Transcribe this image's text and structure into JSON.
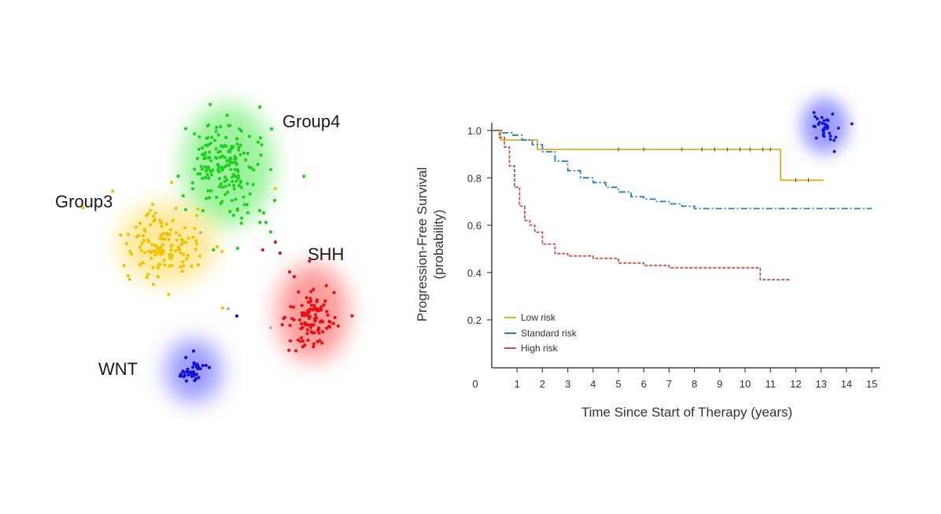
{
  "clusters": {
    "groups": [
      {
        "label": "Group4",
        "color": "#1fd11f",
        "glow": "#4dea4d"
      },
      {
        "label": "Group3",
        "color": "#f2c200",
        "glow": "#ffd84a"
      },
      {
        "label": "SHH",
        "color": "#e81111",
        "glow": "#ff4a4a"
      },
      {
        "label": "WNT",
        "color": "#1212d8",
        "glow": "#4a4aff"
      }
    ]
  },
  "chart_data": {
    "type": "line",
    "subtype": "kaplan-meier survival curve",
    "title": "",
    "xlabel": "Time Since Start of Therapy (years)",
    "ylabel": "Progression-Free Survival (probability)",
    "ylabel_lines": [
      "Progression-Free Survival",
      "(probability)"
    ],
    "xlim": [
      0,
      15
    ],
    "ylim": [
      0,
      1.0
    ],
    "x_ticks": [
      0,
      1,
      2,
      3,
      4,
      5,
      6,
      7,
      8,
      9,
      10,
      11,
      12,
      13,
      14,
      15
    ],
    "y_ticks": [
      0.2,
      0.4,
      0.6,
      0.8,
      1.0
    ],
    "y_tick_labels": [
      "0.2",
      "0.4",
      "0.6",
      "0.8",
      "1.0"
    ],
    "x_tick_labels": [
      "0",
      "1",
      "2",
      "3",
      "4",
      "5",
      "6",
      "7",
      "8",
      "9",
      "10",
      "11",
      "12",
      "13",
      "14",
      "15"
    ],
    "grid": false,
    "legend_position": "bottom-left",
    "series": [
      {
        "name": "Low risk",
        "color": "#e0b020",
        "style": "solid",
        "x": [
          0,
          0.35,
          1.8,
          11.4,
          13.1
        ],
        "values": [
          1.0,
          0.96,
          0.92,
          0.79,
          0.79
        ],
        "censored_x": [
          5.0,
          6.0,
          7.5,
          8.3,
          8.8,
          9.3,
          9.8,
          10.2,
          10.7,
          11.0,
          12.0,
          12.5
        ]
      },
      {
        "name": "Standard risk",
        "color": "#1f7fc8",
        "style": "dash-dot",
        "x": [
          0,
          0.4,
          0.8,
          1.2,
          1.6,
          2.0,
          2.5,
          3.0,
          3.5,
          4.0,
          4.5,
          5.0,
          5.5,
          6.0,
          6.5,
          7.0,
          7.5,
          8.0,
          9.0,
          10.0,
          11.0,
          12.0,
          13.0,
          14.0,
          15.0
        ],
        "values": [
          1.0,
          0.99,
          0.98,
          0.96,
          0.94,
          0.91,
          0.87,
          0.83,
          0.8,
          0.78,
          0.76,
          0.74,
          0.72,
          0.71,
          0.7,
          0.69,
          0.68,
          0.67,
          0.67,
          0.67,
          0.67,
          0.67,
          0.67,
          0.67,
          0.67
        ]
      },
      {
        "name": "High risk",
        "color": "#c0524a",
        "style": "dashed",
        "x": [
          0,
          0.3,
          0.5,
          0.7,
          0.9,
          1.1,
          1.3,
          1.5,
          1.7,
          2.0,
          2.5,
          3.0,
          4.0,
          5.0,
          6.0,
          7.0,
          8.0,
          9.0,
          10.0,
          10.6,
          11.8
        ],
        "values": [
          1.0,
          0.97,
          0.93,
          0.85,
          0.76,
          0.68,
          0.62,
          0.6,
          0.57,
          0.52,
          0.48,
          0.47,
          0.46,
          0.44,
          0.43,
          0.42,
          0.42,
          0.42,
          0.42,
          0.37,
          0.37
        ]
      }
    ]
  },
  "inset": {
    "color": "#1212d8"
  }
}
